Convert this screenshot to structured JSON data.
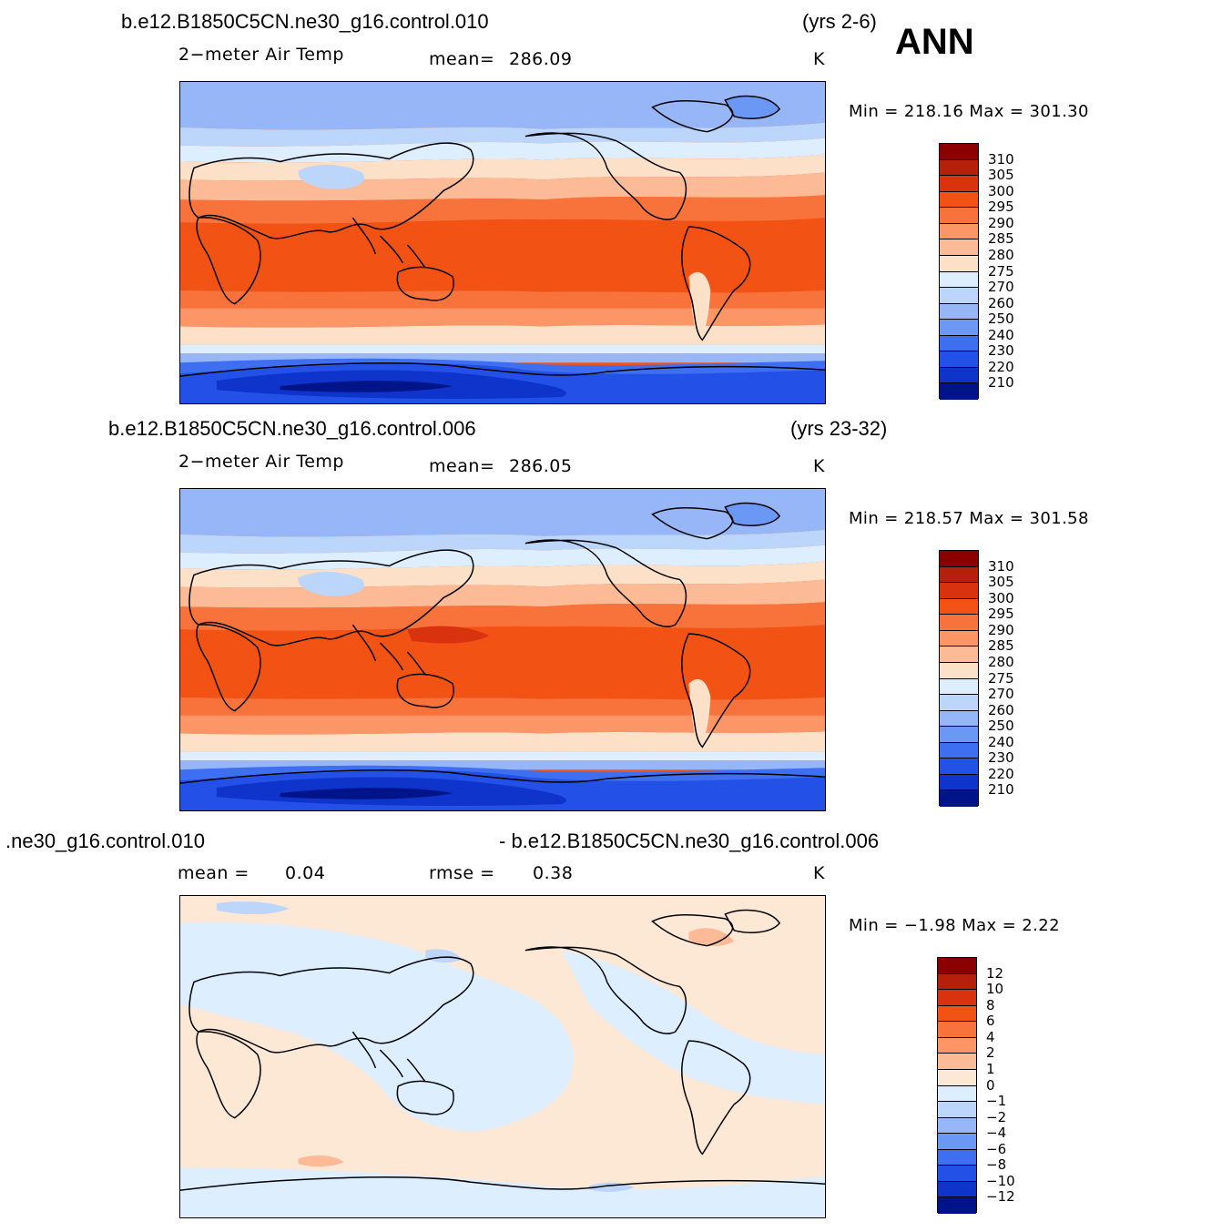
{
  "season": "ANN",
  "panels": [
    {
      "case_title": "b.e12.B1850C5CN.ne30_g16.control.010",
      "years": "(yrs 2-6)",
      "variable": "2−meter Air Temp",
      "stat_label": "mean=",
      "stat_value": "286.09",
      "units": "K",
      "min_max": "Min  =  218.16  Max  =  301.30",
      "colorbar": {
        "labels": [
          "310",
          "305",
          "300",
          "295",
          "290",
          "285",
          "280",
          "275",
          "270",
          "260",
          "250",
          "240",
          "230",
          "220",
          "210"
        ],
        "colors": [
          "#8b0000",
          "#b5200a",
          "#d8330e",
          "#f25315",
          "#f7733b",
          "#fc9666",
          "#fcba96",
          "#fde0c8",
          "#dceeff",
          "#bcd5fa",
          "#96b6f7",
          "#6b97f5",
          "#3e6ff0",
          "#2350e6",
          "#0e34cc",
          "#00148a"
        ]
      }
    },
    {
      "case_title": "b.e12.B1850C5CN.ne30_g16.control.006",
      "years": "(yrs 23-32)",
      "variable": "2−meter Air Temp",
      "stat_label": "mean=",
      "stat_value": "286.05",
      "units": "K",
      "min_max": "Min  =  218.57  Max  =  301.58",
      "colorbar": {
        "labels": [
          "310",
          "305",
          "300",
          "295",
          "290",
          "285",
          "280",
          "275",
          "270",
          "260",
          "250",
          "240",
          "230",
          "220",
          "210"
        ],
        "colors": [
          "#8b0000",
          "#b5200a",
          "#d8330e",
          "#f25315",
          "#f7733b",
          "#fc9666",
          "#fcba96",
          "#fde0c8",
          "#dceeff",
          "#bcd5fa",
          "#96b6f7",
          "#6b97f5",
          "#3e6ff0",
          "#2350e6",
          "#0e34cc",
          "#00148a"
        ]
      }
    },
    {
      "case_title_left": ".ne30_g16.control.010",
      "case_title_right": "- b.e12.B1850C5CN.ne30_g16.control.006",
      "stat_label": "mean  =",
      "stat_value": "0.04",
      "rmse_label": "rmse  =",
      "rmse_value": "0.38",
      "units": "K",
      "min_max": "Min  =    −1.98  Max  =      2.22",
      "colorbar": {
        "labels": [
          "12",
          "10",
          "8",
          "6",
          "4",
          "2",
          "1",
          "0",
          "−1",
          "−2",
          "−4",
          "−6",
          "−8",
          "−10",
          "−12"
        ],
        "colors": [
          "#8b0000",
          "#b5200a",
          "#d8330e",
          "#f25315",
          "#f7733b",
          "#fc9666",
          "#fcba96",
          "#fde8d6",
          "#dceeff",
          "#bcd5fa",
          "#96b6f7",
          "#6b97f5",
          "#3e6ff0",
          "#2350e6",
          "#0e34cc",
          "#00148a"
        ]
      }
    }
  ]
}
